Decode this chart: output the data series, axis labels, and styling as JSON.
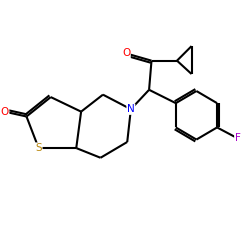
{
  "bg_color": "#ffffff",
  "atom_colors": {
    "O": "#ff0000",
    "S": "#b8860b",
    "N": "#0000ff",
    "F": "#aa00cc",
    "C": "#000000"
  },
  "line_color": "#000000",
  "line_width": 1.5,
  "figsize": [
    2.5,
    2.5
  ],
  "dpi": 100
}
